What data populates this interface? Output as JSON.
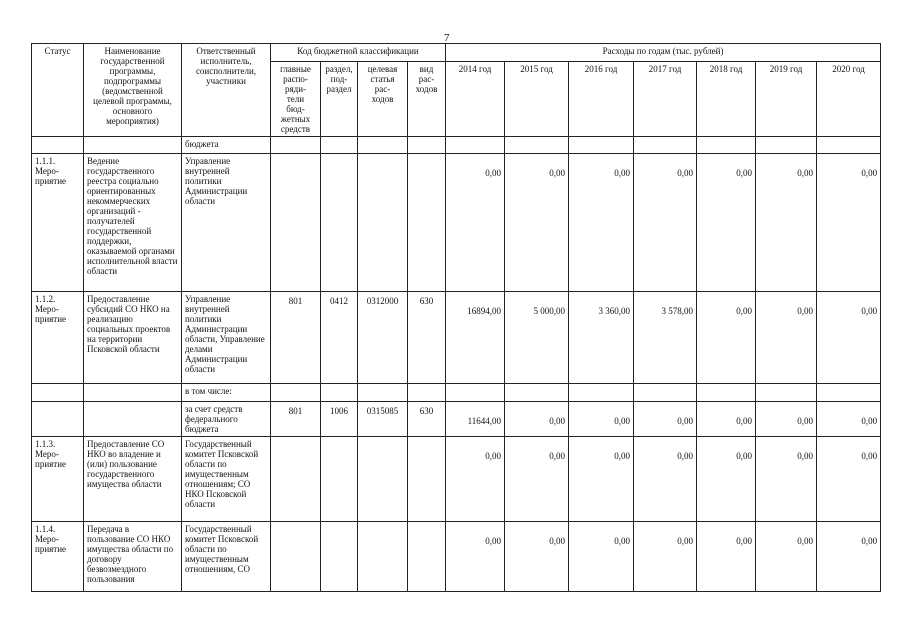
{
  "page_number": "7",
  "header": {
    "status": "Статус",
    "name": "Наименование государственной программы, подпрограммы (ведомственной целевой программы, основного мероприятия)",
    "responsible": "Ответственный исполнитель, соисполнители, участники",
    "code_group": "Код бюджетной классификации",
    "codes": [
      "главные\nраспо-\nряди-\nтели\nбюд-\nжетных\nсредств",
      "раздел,\nпод-\nраздел",
      "целевая\nстатья\nрас-\nходов",
      "вид\nрас-\nходов"
    ],
    "expenses_group": "Расходы по годам (тыс. рублей)",
    "years": [
      "2014 год",
      "2015 год",
      "2016 год",
      "2017 год",
      "2018 год",
      "2019 год",
      "2020 год"
    ]
  },
  "rows": [
    {
      "responsible": "бюджета"
    },
    {
      "status": "1.1.1.\nМеро-\nприятие",
      "name": "Ведение государственного реестра социально ориентированных некоммерческих организаций - получателей государственной поддержки, оказываемой органами исполнительной власти области",
      "responsible": "Управление внутренней политики Администрации области",
      "values": [
        "0,00",
        "0,00",
        "0,00",
        "0,00",
        "0,00",
        "0,00",
        "0,00"
      ]
    },
    {
      "status": "1.1.2.\nМеро-\nприятие",
      "name": "Предоставление субсидий СО НКО на реализацию социальных проектов на территории Псковской области",
      "responsible": "Управление внутренней политики Администрации области, Управление делами Администрации области",
      "codes": [
        "801",
        "0412",
        "0312000",
        "630"
      ],
      "values": [
        "16894,00",
        "5 000,00",
        "3 360,00",
        "3 578,00",
        "0,00",
        "0,00",
        "0,00"
      ]
    },
    {
      "responsible": "в том числе:"
    },
    {
      "responsible": "за счет средств федерального бюджета",
      "codes": [
        "801",
        "1006",
        "0315085",
        "630"
      ],
      "values": [
        "11644,00",
        "0,00",
        "0,00",
        "0,00",
        "0,00",
        "0,00",
        "0,00"
      ]
    },
    {
      "status": "1.1.3.\nМеро-\nприятие",
      "name": "Предоставление СО НКО во владение и (или) пользование государственного имущества области",
      "responsible": "Государственный комитет Псковской области по имущественным отношениям; СО НКО Псковской области",
      "values": [
        "0,00",
        "0,00",
        "0,00",
        "0,00",
        "0,00",
        "0,00",
        "0,00"
      ]
    },
    {
      "status": "1.1.4.\nМеро-\nприятие",
      "name": "Передача в пользование СО НКО имущества области по договору безвозмездного пользования",
      "responsible": "Государственный комитет Псковской области по имущественным отношениям, СО",
      "values": [
        "0,00",
        "0,00",
        "0,00",
        "0,00",
        "0,00",
        "0,00",
        "0,00"
      ]
    }
  ]
}
